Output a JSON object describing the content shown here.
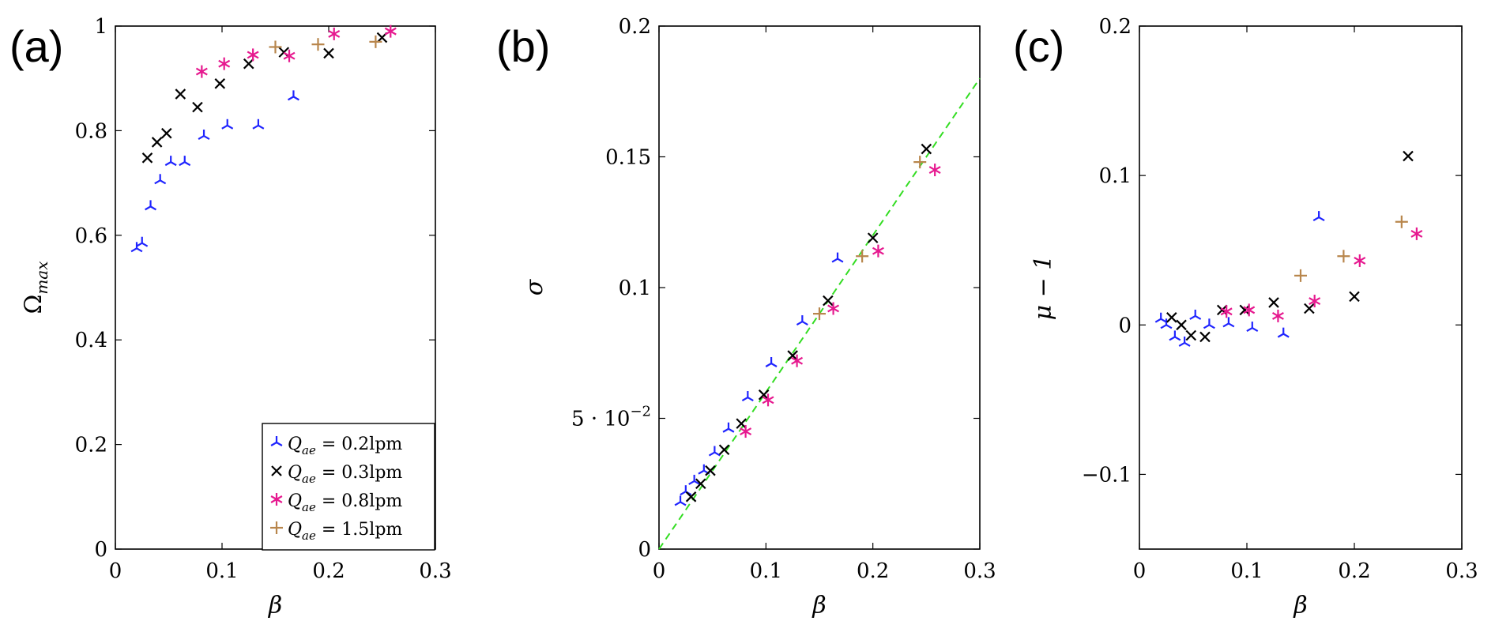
{
  "legend": {
    "entries": [
      {
        "series": 0,
        "text": "Q_ae = 0.2lpm",
        "sym": "Q",
        "sub": "ae",
        "rest": " = 0.2lpm"
      },
      {
        "series": 1,
        "text": "Q_ae = 0.3lpm",
        "sym": "Q",
        "sub": "ae",
        "rest": " = 0.3lpm"
      },
      {
        "series": 2,
        "text": "Q_ae = 0.8lpm",
        "sym": "Q",
        "sub": "ae",
        "rest": " = 0.8lpm"
      },
      {
        "series": 3,
        "text": "Q_ae = 1.5lpm",
        "sym": "Q",
        "sub": "ae",
        "rest": " = 1.5lpm"
      }
    ],
    "placement": "bottom-right of panel (a)"
  },
  "chart_data": [
    {
      "panel": "(a)",
      "type": "scatter",
      "xlabel": "β",
      "ylabel": "Ω_max",
      "ylabel_parts": {
        "sym": "Ω",
        "sub": "max"
      },
      "xlim": [
        0,
        0.3
      ],
      "ylim": [
        0,
        1
      ],
      "xticks": [
        {
          "v": 0,
          "label": "0"
        },
        {
          "v": 0.1,
          "label": "0.1"
        },
        {
          "v": 0.2,
          "label": "0.2"
        },
        {
          "v": 0.3,
          "label": "0.3"
        }
      ],
      "yticks": [
        {
          "v": 0,
          "label": "0"
        },
        {
          "v": 0.2,
          "label": "0.2"
        },
        {
          "v": 0.4,
          "label": "0.4"
        },
        {
          "v": 0.6,
          "label": "0.6"
        },
        {
          "v": 0.8,
          "label": "0.8"
        },
        {
          "v": 1,
          "label": "1"
        }
      ],
      "grid": false,
      "series": [
        {
          "name": "Q_ae = 0.2lpm",
          "color": "#1f24ff",
          "marker": "tri",
          "points": [
            [
              0.02,
              0.575
            ],
            [
              0.025,
              0.585
            ],
            [
              0.033,
              0.655
            ],
            [
              0.042,
              0.705
            ],
            [
              0.052,
              0.74
            ],
            [
              0.065,
              0.74
            ],
            [
              0.083,
              0.79
            ],
            [
              0.105,
              0.81
            ],
            [
              0.134,
              0.81
            ],
            [
              0.167,
              0.865
            ]
          ]
        },
        {
          "name": "Q_ae = 0.3lpm",
          "color": "#000000",
          "marker": "x",
          "points": [
            [
              0.03,
              0.748
            ],
            [
              0.039,
              0.778
            ],
            [
              0.048,
              0.795
            ],
            [
              0.061,
              0.87
            ],
            [
              0.077,
              0.845
            ],
            [
              0.098,
              0.89
            ],
            [
              0.125,
              0.928
            ],
            [
              0.158,
              0.95
            ],
            [
              0.2,
              0.948
            ],
            [
              0.25,
              0.978
            ]
          ]
        },
        {
          "name": "Q_ae = 0.8lpm",
          "color": "#e6198f",
          "marker": "star",
          "points": [
            [
              0.081,
              0.913
            ],
            [
              0.102,
              0.928
            ],
            [
              0.129,
              0.945
            ],
            [
              0.163,
              0.943
            ],
            [
              0.205,
              0.985
            ],
            [
              0.258,
              0.99
            ]
          ]
        },
        {
          "name": "Q_ae = 1.5lpm",
          "color": "#b8864c",
          "marker": "plus",
          "points": [
            [
              0.15,
              0.96
            ],
            [
              0.19,
              0.965
            ],
            [
              0.244,
              0.97
            ]
          ]
        }
      ]
    },
    {
      "panel": "(b)",
      "type": "scatter",
      "xlabel": "β",
      "ylabel": "σ",
      "xlim": [
        0,
        0.3
      ],
      "ylim": [
        0,
        0.2
      ],
      "xticks": [
        {
          "v": 0,
          "label": "0"
        },
        {
          "v": 0.1,
          "label": "0.1"
        },
        {
          "v": 0.2,
          "label": "0.2"
        },
        {
          "v": 0.3,
          "label": "0.3"
        }
      ],
      "yticks": [
        {
          "v": 0,
          "label": "0"
        },
        {
          "v": 0.05,
          "label": "5·10⁻²",
          "base": "5 · 10",
          "exp": "−2"
        },
        {
          "v": 0.1,
          "label": "0.1"
        },
        {
          "v": 0.15,
          "label": "0.15"
        },
        {
          "v": 0.2,
          "label": "0.2"
        }
      ],
      "grid": false,
      "fit_line": {
        "color": "#33dd22",
        "style": "dashed",
        "points": [
          [
            0,
            0
          ],
          [
            0.3,
            0.18
          ]
        ]
      },
      "series": [
        {
          "name": "Q_ae = 0.2lpm",
          "color": "#1f24ff",
          "marker": "tri",
          "points": [
            [
              0.02,
              0.018
            ],
            [
              0.025,
              0.022
            ],
            [
              0.033,
              0.026
            ],
            [
              0.042,
              0.03
            ],
            [
              0.052,
              0.037
            ],
            [
              0.065,
              0.046
            ],
            [
              0.083,
              0.058
            ],
            [
              0.105,
              0.071
            ],
            [
              0.134,
              0.087
            ],
            [
              0.167,
              0.111
            ]
          ]
        },
        {
          "name": "Q_ae = 0.3lpm",
          "color": "#000000",
          "marker": "x",
          "points": [
            [
              0.03,
              0.02
            ],
            [
              0.039,
              0.025
            ],
            [
              0.048,
              0.03
            ],
            [
              0.061,
              0.038
            ],
            [
              0.077,
              0.048
            ],
            [
              0.098,
              0.059
            ],
            [
              0.125,
              0.074
            ],
            [
              0.158,
              0.095
            ],
            [
              0.2,
              0.119
            ],
            [
              0.25,
              0.153
            ]
          ]
        },
        {
          "name": "Q_ae = 0.8lpm",
          "color": "#e6198f",
          "marker": "star",
          "points": [
            [
              0.081,
              0.045
            ],
            [
              0.102,
              0.057
            ],
            [
              0.129,
              0.072
            ],
            [
              0.163,
              0.092
            ],
            [
              0.205,
              0.114
            ],
            [
              0.258,
              0.145
            ]
          ]
        },
        {
          "name": "Q_ae = 1.5lpm",
          "color": "#b8864c",
          "marker": "plus",
          "points": [
            [
              0.15,
              0.09
            ],
            [
              0.19,
              0.112
            ],
            [
              0.244,
              0.148
            ]
          ]
        }
      ]
    },
    {
      "panel": "(c)",
      "type": "scatter",
      "xlabel": "β",
      "ylabel": "μ − 1",
      "xlim": [
        0,
        0.3
      ],
      "ylim": [
        -0.15,
        0.2
      ],
      "xticks": [
        {
          "v": 0,
          "label": "0"
        },
        {
          "v": 0.1,
          "label": "0.1"
        },
        {
          "v": 0.2,
          "label": "0.2"
        },
        {
          "v": 0.3,
          "label": "0.3"
        }
      ],
      "yticks": [
        {
          "v": -0.1,
          "label": "−0.1"
        },
        {
          "v": 0,
          "label": "0"
        },
        {
          "v": 0.1,
          "label": "0.1"
        },
        {
          "v": 0.2,
          "label": "0.2"
        }
      ],
      "grid": false,
      "series": [
        {
          "name": "Q_ae = 0.2lpm",
          "color": "#1f24ff",
          "marker": "tri",
          "points": [
            [
              0.02,
              0.004
            ],
            [
              0.025,
              0.0
            ],
            [
              0.033,
              -0.008
            ],
            [
              0.042,
              -0.012
            ],
            [
              0.052,
              0.006
            ],
            [
              0.065,
              0.0
            ],
            [
              0.083,
              0.001
            ],
            [
              0.105,
              -0.002
            ],
            [
              0.134,
              -0.006
            ],
            [
              0.167,
              0.072
            ]
          ]
        },
        {
          "name": "Q_ae = 0.3lpm",
          "color": "#000000",
          "marker": "x",
          "points": [
            [
              0.03,
              0.005
            ],
            [
              0.039,
              0.0
            ],
            [
              0.048,
              -0.007
            ],
            [
              0.061,
              -0.008
            ],
            [
              0.077,
              0.01
            ],
            [
              0.098,
              0.01
            ],
            [
              0.125,
              0.015
            ],
            [
              0.158,
              0.011
            ],
            [
              0.2,
              0.019
            ],
            [
              0.25,
              0.113
            ]
          ]
        },
        {
          "name": "Q_ae = 0.8lpm",
          "color": "#e6198f",
          "marker": "star",
          "points": [
            [
              0.081,
              0.009
            ],
            [
              0.102,
              0.01
            ],
            [
              0.129,
              0.006
            ],
            [
              0.163,
              0.016
            ],
            [
              0.205,
              0.043
            ],
            [
              0.258,
              0.061
            ]
          ]
        },
        {
          "name": "Q_ae = 1.5lpm",
          "color": "#b8864c",
          "marker": "plus",
          "points": [
            [
              0.15,
              0.033
            ],
            [
              0.19,
              0.046
            ],
            [
              0.244,
              0.069
            ]
          ]
        }
      ]
    }
  ]
}
